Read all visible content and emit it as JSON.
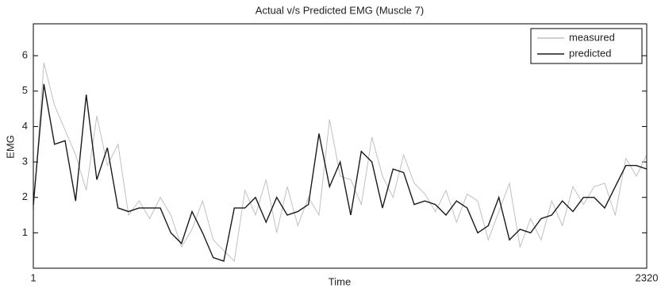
{
  "chart_data": {
    "type": "line",
    "title": "Actual v/s Predicted EMG (Muscle 7)",
    "x_label": "Time",
    "y_label": "EMG",
    "x": [
      1,
      41,
      81,
      121,
      161,
      201,
      241,
      281,
      321,
      361,
      401,
      441,
      481,
      521,
      561,
      601,
      641,
      681,
      721,
      761,
      801,
      841,
      881,
      921,
      961,
      1001,
      1041,
      1081,
      1121,
      1161,
      1201,
      1241,
      1281,
      1321,
      1361,
      1401,
      1441,
      1481,
      1521,
      1561,
      1601,
      1641,
      1681,
      1721,
      1761,
      1801,
      1841,
      1881,
      1921,
      1961,
      2001,
      2041,
      2081,
      2121,
      2161,
      2201,
      2241,
      2281,
      2320
    ],
    "series": [
      {
        "name": "measured",
        "color": "#c0c0c0",
        "values": [
          1.6,
          5.8,
          4.6,
          3.9,
          3.2,
          2.2,
          4.3,
          2.9,
          3.5,
          1.5,
          1.9,
          1.4,
          2.0,
          1.5,
          0.6,
          1.1,
          1.9,
          0.8,
          0.5,
          0.2,
          2.2,
          1.5,
          2.5,
          1.0,
          2.3,
          1.2,
          2.0,
          1.5,
          4.2,
          2.6,
          2.5,
          1.8,
          3.7,
          2.6,
          2.0,
          3.2,
          2.4,
          2.1,
          1.6,
          2.2,
          1.3,
          2.1,
          1.9,
          0.8,
          1.6,
          2.4,
          0.6,
          1.4,
          0.8,
          1.9,
          1.2,
          2.3,
          1.8,
          2.3,
          2.4,
          1.5,
          3.1,
          2.6,
          3.2
        ]
      },
      {
        "name": "predicted",
        "color": "#1a1a1a",
        "values": [
          1.8,
          5.2,
          3.5,
          3.6,
          1.9,
          4.9,
          2.5,
          3.4,
          1.7,
          1.6,
          1.7,
          1.7,
          1.7,
          1.0,
          0.7,
          1.6,
          1.0,
          0.3,
          0.2,
          1.7,
          1.7,
          2.0,
          1.3,
          2.0,
          1.5,
          1.6,
          1.8,
          3.8,
          2.3,
          3.0,
          1.5,
          3.3,
          3.0,
          1.7,
          2.8,
          2.7,
          1.8,
          1.9,
          1.8,
          1.5,
          1.9,
          1.7,
          1.0,
          1.2,
          2.0,
          0.8,
          1.1,
          1.0,
          1.4,
          1.5,
          1.9,
          1.6,
          2.0,
          2.0,
          1.7,
          2.3,
          2.9,
          2.9,
          2.8
        ]
      }
    ],
    "xlim": [
      1,
      2320
    ],
    "xticks": [
      1,
      2320
    ],
    "ylim": [
      0,
      6.9
    ],
    "yticks": [
      1,
      2,
      3,
      4,
      5,
      6
    ],
    "legend": "northeast",
    "grid": false
  }
}
